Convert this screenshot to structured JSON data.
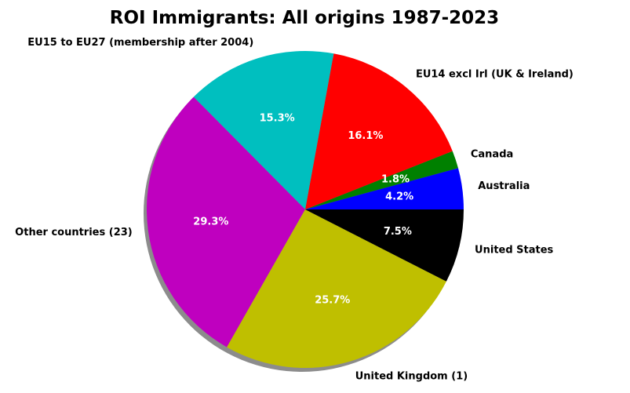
{
  "chart_data": {
    "type": "pie",
    "title": "ROI Immigrants: All origins 1987-2023",
    "shadow": true,
    "start_angle_deg": 0,
    "direction": "counterclockwise",
    "slices": [
      {
        "label": "Australia",
        "value": 4.2,
        "pct_label": "4.2%",
        "color": "#0000ff"
      },
      {
        "label": "Canada",
        "value": 1.8,
        "pct_label": "1.8%",
        "color": "#008000"
      },
      {
        "label": "EU14 excl Irl (UK & Ireland)",
        "value": 16.1,
        "pct_label": "16.1%",
        "color": "#ff0000"
      },
      {
        "label": "EU15 to EU27 (membership after 2004)",
        "value": 15.3,
        "pct_label": "15.3%",
        "color": "#00bfbf"
      },
      {
        "label": "Other countries (23)",
        "value": 29.3,
        "pct_label": "29.3%",
        "color": "#bf00bf"
      },
      {
        "label": "United Kingdom (1)",
        "value": 25.7,
        "pct_label": "25.7%",
        "color": "#bfbf00"
      },
      {
        "label": "United States",
        "value": 7.5,
        "pct_label": "7.5%",
        "color": "#000000"
      }
    ]
  }
}
